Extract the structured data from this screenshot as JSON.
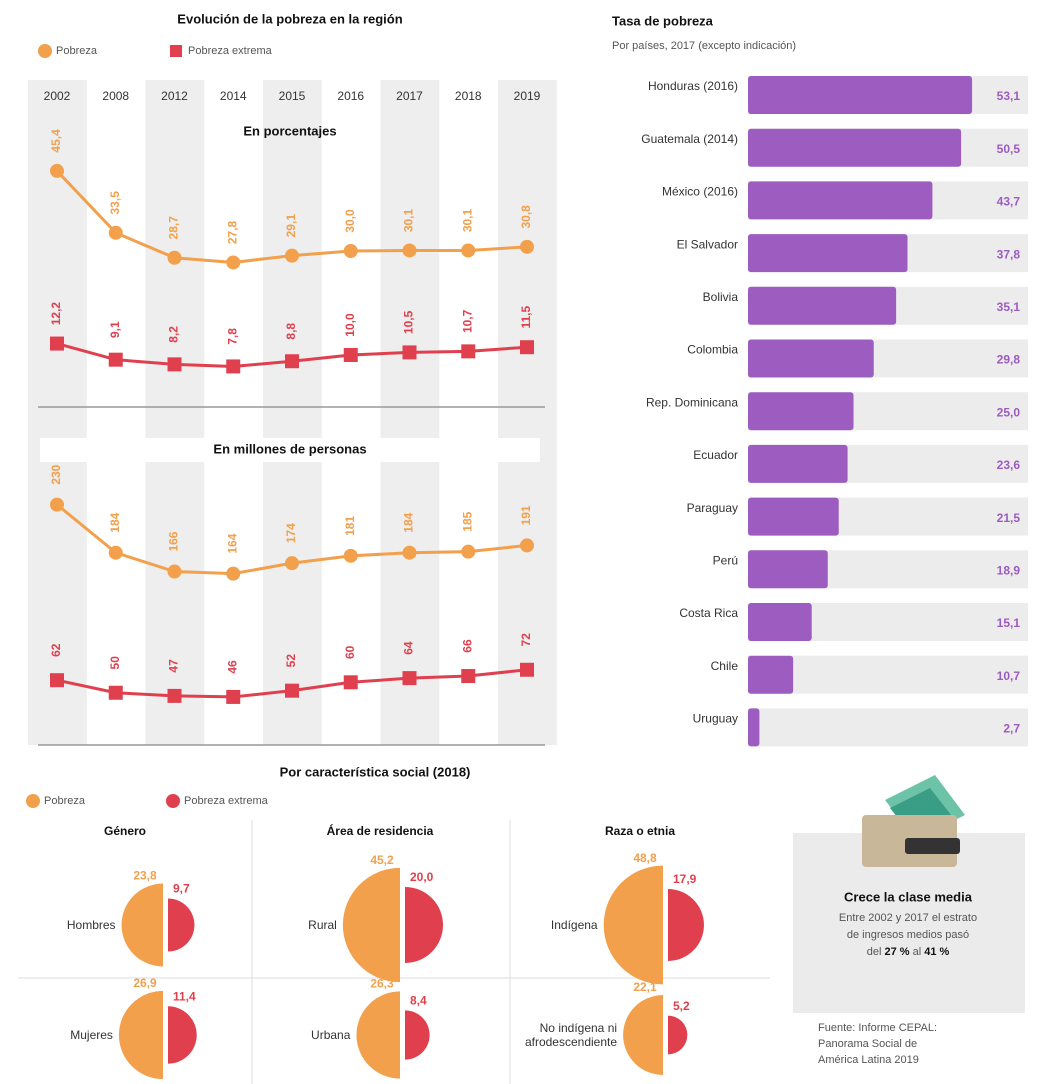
{
  "chart_data": [
    {
      "type": "line",
      "title": "Evolución de la pobreza en la región",
      "subtitle": "En porcentajes",
      "categories": [
        "2002",
        "2008",
        "2012",
        "2014",
        "2015",
        "2016",
        "2017",
        "2018",
        "2019"
      ],
      "series": [
        {
          "name": "Pobreza",
          "color": "#f2a04c",
          "values": [
            45.4,
            33.5,
            28.7,
            27.8,
            29.1,
            30.0,
            30.1,
            30.1,
            30.8
          ],
          "value_labels": [
            "45,4",
            "33,5",
            "28,7",
            "27,8",
            "29,1",
            "30,0",
            "30,1",
            "30,1",
            "30,8"
          ]
        },
        {
          "name": "Pobreza extrema",
          "color": "#e0404e",
          "values": [
            12.2,
            9.1,
            8.2,
            7.8,
            8.8,
            10.0,
            10.5,
            10.7,
            11.5
          ],
          "value_labels": [
            "12,2",
            "9,1",
            "8,2",
            "7,8",
            "8,8",
            "10,0",
            "10,5",
            "10,7",
            "11,5"
          ]
        }
      ]
    },
    {
      "type": "line",
      "subtitle": "En millones de personas",
      "series": [
        {
          "color": "#f2a04c",
          "values": [
            230,
            184,
            166,
            164,
            174,
            181,
            184,
            185,
            191
          ]
        },
        {
          "color": "#e0404e",
          "values": [
            62,
            50,
            47,
            46,
            52,
            60,
            64,
            66,
            72
          ]
        }
      ]
    },
    {
      "type": "hbar",
      "title": "Tasa de pobreza",
      "subtitle": "Por países, 2017 (excepto indicación)",
      "color": "#9d5cc0",
      "categories": [
        "Honduras (2016)",
        "Guatemala (2014)",
        "México (2016)",
        "El Salvador",
        "Bolivia",
        "Colombia",
        "Rep. Dominicana",
        "Ecuador",
        "Paraguay",
        "Perú",
        "Costa Rica",
        "Chile",
        "Uruguay"
      ],
      "values": [
        53.1,
        50.5,
        43.7,
        37.8,
        35.1,
        29.8,
        25.0,
        23.6,
        21.5,
        18.9,
        15.1,
        10.7,
        2.7
      ],
      "value_labels": [
        "53,1",
        "50,5",
        "43,7",
        "37,8",
        "35,1",
        "29,8",
        "25,0",
        "23,6",
        "21,5",
        "18,9",
        "15,1",
        "10,7",
        "2,7"
      ]
    },
    {
      "type": "semicircle",
      "title": "Por característica social (2018)",
      "series": [
        {
          "name": "Pobreza",
          "color": "#f2a04c"
        },
        {
          "name": "Pobreza extrema",
          "color": "#e0404e"
        }
      ],
      "groups": [
        {
          "title": "Género",
          "categories": [
            "Hombres",
            "Mujeres"
          ],
          "series": [
            {
              "values": [
                23.8,
                26.9
              ],
              "value_labels": [
                "23,8",
                "26,9"
              ]
            },
            {
              "values": [
                9.7,
                11.4
              ],
              "value_labels": [
                "9,7",
                "11,4"
              ]
            }
          ]
        },
        {
          "title": "Área de residencia",
          "categories": [
            "Rural",
            "Urbana"
          ],
          "series": [
            {
              "values": [
                45.2,
                26.3
              ],
              "value_labels": [
                "45,2",
                "26,3"
              ]
            },
            {
              "values": [
                20.0,
                8.4
              ],
              "value_labels": [
                "20,0",
                "8,4"
              ]
            }
          ]
        },
        {
          "title": "Raza o etnia",
          "categories": [
            "Indígena",
            "No indígena ni afrodescendiente"
          ],
          "series": [
            {
              "values": [
                48.8,
                22.1
              ],
              "value_labels": [
                "48,8",
                "22,1"
              ]
            },
            {
              "values": [
                17.9,
                5.2
              ],
              "value_labels": [
                "17,9",
                "5,2"
              ]
            }
          ]
        }
      ]
    }
  ],
  "note": {
    "title": "Crece la clase media",
    "body": [
      "Entre 2002 y 2017 el estrato",
      "de ingresos medios pasó",
      "del",
      "27 %",
      "al",
      "41 %"
    ]
  },
  "source": [
    "Fuente: Informe CEPAL:",
    "Panorama Social de",
    "América Latina 2019"
  ]
}
